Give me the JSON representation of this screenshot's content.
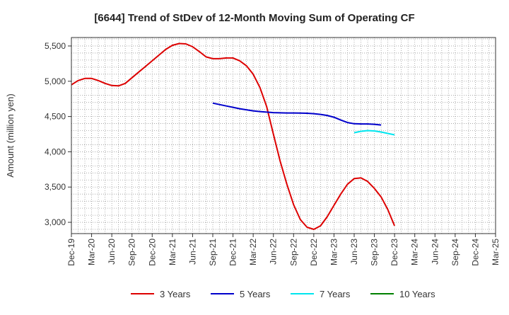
{
  "chart_data": {
    "type": "line",
    "title": "[6644]  Trend of StDev of 12-Month Moving Sum of Operating CF",
    "ylabel": "Amount (million yen)",
    "xlabel": "",
    "ylim": [
      2840,
      5620
    ],
    "yticks": [
      3000,
      3500,
      4000,
      4500,
      5000,
      5500
    ],
    "ytick_labels": [
      "3,000",
      "3,500",
      "4,000",
      "4,500",
      "5,000",
      "5,500"
    ],
    "x_tick_labels": [
      "Dec-19",
      "Mar-20",
      "Jun-20",
      "Sep-20",
      "Dec-20",
      "Mar-21",
      "Jun-21",
      "Sep-21",
      "Dec-21",
      "Mar-22",
      "Jun-22",
      "Sep-22",
      "Dec-22",
      "Mar-23",
      "Jun-23",
      "Sep-23",
      "Dec-23",
      "Mar-24",
      "Jun-24",
      "Sep-24",
      "Dec-24",
      "Mar-25"
    ],
    "grid": true,
    "legend_position": "bottom",
    "series": [
      {
        "name": "3 Years",
        "color": "#dd0000",
        "start_index": 0,
        "values": [
          4950,
          5010,
          5040,
          5040,
          5010,
          4970,
          4940,
          4935,
          4970,
          5050,
          5130,
          5210,
          5290,
          5370,
          5450,
          5510,
          5535,
          5530,
          5490,
          5420,
          5345,
          5320,
          5320,
          5330,
          5330,
          5290,
          5220,
          5100,
          4910,
          4640,
          4250,
          3870,
          3540,
          3250,
          3040,
          2930,
          2900,
          2950,
          3080,
          3240,
          3400,
          3540,
          3620,
          3630,
          3580,
          3480,
          3360,
          3180,
          2950
        ]
      },
      {
        "name": "5 Years",
        "color": "#0000cc",
        "start_index": 21,
        "values": [
          4690,
          4670,
          4650,
          4630,
          4610,
          4595,
          4580,
          4570,
          4562,
          4555,
          4552,
          4550,
          4550,
          4548,
          4546,
          4540,
          4530,
          4515,
          4490,
          4450,
          4415,
          4398,
          4395,
          4395,
          4390,
          4380
        ]
      },
      {
        "name": "7 Years",
        "color": "#00e5ee",
        "start_index": 42,
        "values": [
          4270,
          4290,
          4300,
          4295,
          4280,
          4260,
          4240
        ]
      },
      {
        "name": "10 Years",
        "color": "#008000",
        "start_index": 0,
        "values": []
      }
    ]
  }
}
